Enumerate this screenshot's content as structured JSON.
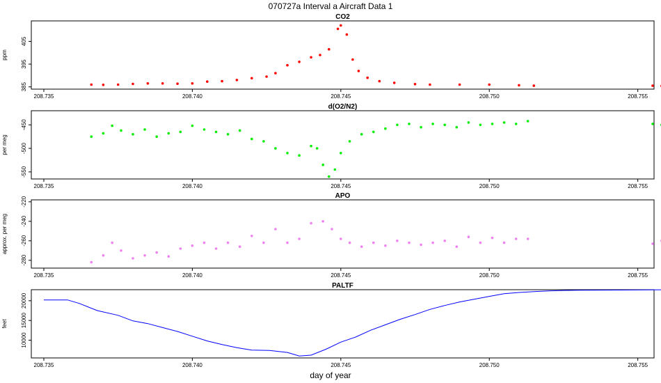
{
  "figure": {
    "title": "070727a   Interval a Aircraft Data 1",
    "xlabel": "day of year",
    "xticks": [
      "208.735",
      "208.740",
      "208.745",
      "208.750",
      "208.755"
    ]
  },
  "colors": {
    "co2": "#ff0000",
    "o2n2": "#00ee00",
    "apo": "#ee82ee",
    "paltf": "#0000ff",
    "axis": "#000000"
  },
  "chart_data": [
    {
      "type": "scatter",
      "title": "CO2",
      "ylabel": "ppm",
      "xlim": [
        208.735,
        208.7555
      ],
      "ylim": [
        384,
        414
      ],
      "yticks": [
        385,
        395,
        405
      ],
      "series": [
        {
          "color": "#ff0000",
          "points": [
            [
              208.7366,
              386.0
            ],
            [
              208.737,
              385.9
            ],
            [
              208.7375,
              386.0
            ],
            [
              208.738,
              386.3
            ],
            [
              208.7385,
              386.5
            ],
            [
              208.739,
              386.5
            ],
            [
              208.7395,
              386.4
            ],
            [
              208.74,
              386.5
            ],
            [
              208.7405,
              387.3
            ],
            [
              208.741,
              387.5
            ],
            [
              208.7415,
              388.0
            ],
            [
              208.742,
              388.8
            ],
            [
              208.7425,
              389.5
            ],
            [
              208.7428,
              391.0
            ],
            [
              208.7432,
              394.5
            ],
            [
              208.7436,
              396.0
            ],
            [
              208.744,
              398.0
            ],
            [
              208.7443,
              399.0
            ],
            [
              208.7446,
              401.5
            ],
            [
              208.7449,
              410.5
            ],
            [
              208.745,
              412.0
            ],
            [
              208.7452,
              408.0
            ],
            [
              208.7454,
              397.0
            ],
            [
              208.7456,
              392.0
            ],
            [
              208.7459,
              389.0
            ],
            [
              208.7463,
              387.5
            ],
            [
              208.7468,
              386.8
            ],
            [
              208.7475,
              386.2
            ],
            [
              208.748,
              386.0
            ],
            [
              208.749,
              386.0
            ],
            [
              208.75,
              386.0
            ],
            [
              208.751,
              385.7
            ],
            [
              208.7515,
              385.5
            ],
            [
              208.7555,
              385.5
            ],
            [
              208.7558,
              385.4
            ],
            [
              208.7561,
              386.2
            ]
          ]
        }
      ]
    },
    {
      "type": "scatter",
      "title": "d(O2/N2)",
      "ylabel": "per meg",
      "xlim": [
        208.735,
        208.7555
      ],
      "ylim": [
        -565,
        -420
      ],
      "yticks": [
        -450,
        -500,
        -550
      ],
      "series": [
        {
          "color": "#00ee00",
          "points": [
            [
              208.7366,
              -475
            ],
            [
              208.737,
              -468
            ],
            [
              208.7373,
              -452
            ],
            [
              208.7376,
              -462
            ],
            [
              208.738,
              -470
            ],
            [
              208.7384,
              -460
            ],
            [
              208.7388,
              -475
            ],
            [
              208.7392,
              -468
            ],
            [
              208.7396,
              -465
            ],
            [
              208.74,
              -452
            ],
            [
              208.7404,
              -460
            ],
            [
              208.7408,
              -465
            ],
            [
              208.7412,
              -470
            ],
            [
              208.7416,
              -462
            ],
            [
              208.742,
              -480
            ],
            [
              208.7424,
              -485
            ],
            [
              208.7428,
              -500
            ],
            [
              208.7432,
              -510
            ],
            [
              208.7436,
              -515
            ],
            [
              208.744,
              -495
            ],
            [
              208.7442,
              -500
            ],
            [
              208.7444,
              -535
            ],
            [
              208.7446,
              -560
            ],
            [
              208.7448,
              -545
            ],
            [
              208.745,
              -510
            ],
            [
              208.7453,
              -485
            ],
            [
              208.7457,
              -470
            ],
            [
              208.7461,
              -465
            ],
            [
              208.7465,
              -458
            ],
            [
              208.7469,
              -450
            ],
            [
              208.7473,
              -448
            ],
            [
              208.7477,
              -455
            ],
            [
              208.7481,
              -448
            ],
            [
              208.7485,
              -450
            ],
            [
              208.7489,
              -455
            ],
            [
              208.7493,
              -445
            ],
            [
              208.7497,
              -450
            ],
            [
              208.7501,
              -448
            ],
            [
              208.7505,
              -445
            ],
            [
              208.7509,
              -448
            ],
            [
              208.7513,
              -442
            ],
            [
              208.7555,
              -448
            ],
            [
              208.7558,
              -450
            ],
            [
              208.7561,
              -455
            ]
          ]
        }
      ]
    },
    {
      "type": "scatter",
      "title": "APO",
      "ylabel": "approx. per meg",
      "xlim": [
        208.735,
        208.7555
      ],
      "ylim": [
        -288,
        -218
      ],
      "yticks": [
        -220,
        -240,
        -260,
        -280
      ],
      "series": [
        {
          "color": "#ee82ee",
          "points": [
            [
              208.7366,
              -282
            ],
            [
              208.737,
              -275
            ],
            [
              208.7373,
              -262
            ],
            [
              208.7376,
              -270
            ],
            [
              208.738,
              -278
            ],
            [
              208.7384,
              -275
            ],
            [
              208.7388,
              -272
            ],
            [
              208.7392,
              -276
            ],
            [
              208.7396,
              -268
            ],
            [
              208.74,
              -265
            ],
            [
              208.7404,
              -262
            ],
            [
              208.7408,
              -268
            ],
            [
              208.7412,
              -262
            ],
            [
              208.7416,
              -266
            ],
            [
              208.742,
              -255
            ],
            [
              208.7424,
              -262
            ],
            [
              208.7428,
              -248
            ],
            [
              208.7432,
              -262
            ],
            [
              208.7436,
              -258
            ],
            [
              208.744,
              -242
            ],
            [
              208.7444,
              -240
            ],
            [
              208.7447,
              -248
            ],
            [
              208.745,
              -258
            ],
            [
              208.7453,
              -262
            ],
            [
              208.7457,
              -266
            ],
            [
              208.7461,
              -262
            ],
            [
              208.7465,
              -265
            ],
            [
              208.7469,
              -260
            ],
            [
              208.7473,
              -262
            ],
            [
              208.7477,
              -264
            ],
            [
              208.7481,
              -262
            ],
            [
              208.7485,
              -260
            ],
            [
              208.7489,
              -266
            ],
            [
              208.7493,
              -256
            ],
            [
              208.7497,
              -262
            ],
            [
              208.7501,
              -257
            ],
            [
              208.7505,
              -262
            ],
            [
              208.7509,
              -258
            ],
            [
              208.7513,
              -258
            ],
            [
              208.7555,
              -263
            ],
            [
              208.7558,
              -260
            ],
            [
              208.7561,
              -265
            ]
          ]
        }
      ]
    },
    {
      "type": "line",
      "title": "PALTF",
      "ylabel": "feet",
      "xlim": [
        208.735,
        208.7555
      ],
      "ylim": [
        5500,
        22800
      ],
      "yticks": [
        10000,
        15000,
        20000
      ],
      "series": [
        {
          "color": "#0000ff",
          "points": [
            [
              208.735,
              20200
            ],
            [
              208.7358,
              20200
            ],
            [
              208.7362,
              19300
            ],
            [
              208.7368,
              17500
            ],
            [
              208.7375,
              16300
            ],
            [
              208.738,
              14900
            ],
            [
              208.7385,
              14200
            ],
            [
              208.739,
              13200
            ],
            [
              208.7395,
              12200
            ],
            [
              208.74,
              11000
            ],
            [
              208.7405,
              9800
            ],
            [
              208.741,
              8900
            ],
            [
              208.7415,
              8100
            ],
            [
              208.742,
              7500
            ],
            [
              208.7426,
              7400
            ],
            [
              208.7432,
              6900
            ],
            [
              208.7436,
              6000
            ],
            [
              208.744,
              6200
            ],
            [
              208.7445,
              7700
            ],
            [
              208.745,
              9500
            ],
            [
              208.7455,
              10800
            ],
            [
              208.746,
              12500
            ],
            [
              208.7465,
              13900
            ],
            [
              208.747,
              15300
            ],
            [
              208.7475,
              16500
            ],
            [
              208.748,
              17800
            ],
            [
              208.7485,
              18800
            ],
            [
              208.749,
              19700
            ],
            [
              208.7495,
              20400
            ],
            [
              208.75,
              21100
            ],
            [
              208.7505,
              21800
            ],
            [
              208.751,
              22100
            ],
            [
              208.7515,
              22300
            ],
            [
              208.752,
              22500
            ],
            [
              208.7525,
              22600
            ],
            [
              208.753,
              22650
            ],
            [
              208.7561,
              22800
            ]
          ]
        }
      ]
    }
  ]
}
